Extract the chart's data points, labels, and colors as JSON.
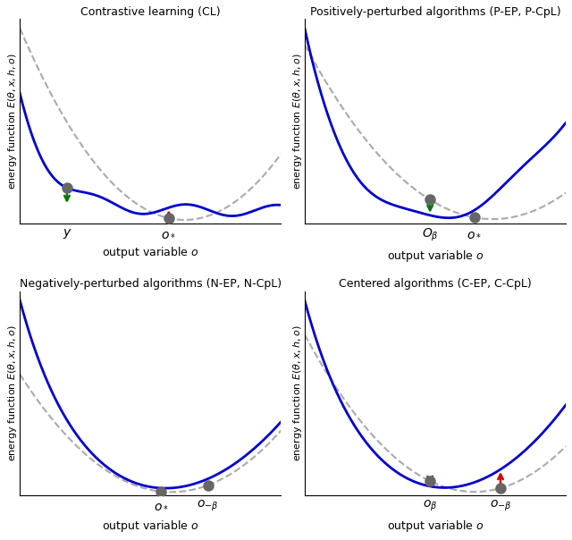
{
  "titles": [
    "Contrastive learning (CL)",
    "Positively-perturbed algorithms (P-EP, P-CpL)",
    "Negatively-perturbed algorithms (N-EP, N-CpL)",
    "Centered algorithms (C-EP, C-CpL)"
  ],
  "ylabel": "energy function $E(\\theta, x, h, o)$",
  "xlabel": "output variable $o$",
  "blue_color": "#0000cc",
  "gray_dot_color": "#666666",
  "dashed_color": "#aaaaaa",
  "green_color": "#007700",
  "red_color": "#cc0000",
  "bg_color": "#ffffff"
}
